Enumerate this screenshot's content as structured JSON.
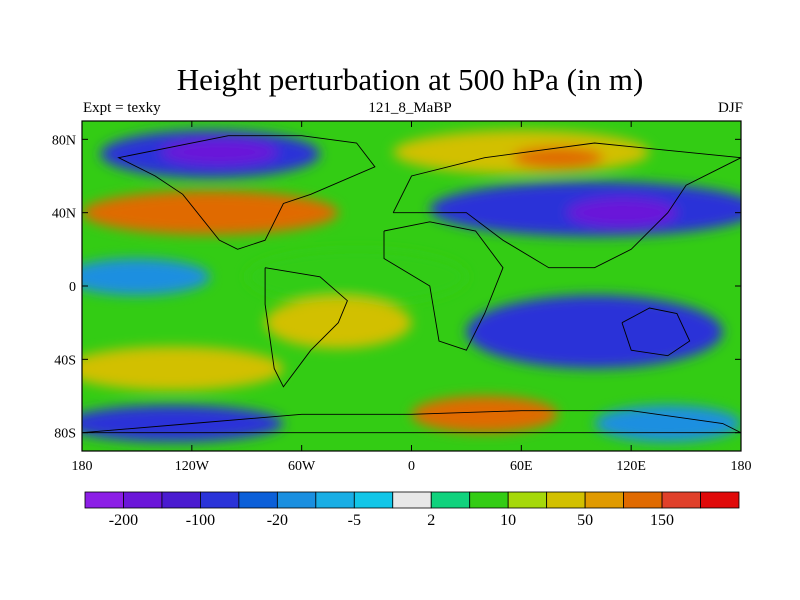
{
  "chart_data": {
    "type": "heatmap",
    "title": "Height perturbation at 500 hPa (in m)",
    "subtitle_left": "Expt = texky",
    "subtitle_center": "121_8_MaBP",
    "subtitle_right": "DJF",
    "xlabel": "",
    "ylabel": "",
    "x_range": [
      -180,
      180
    ],
    "y_range": [
      -90,
      90
    ],
    "x_ticks": [
      {
        "value": -180,
        "label": "180"
      },
      {
        "value": -120,
        "label": "120W"
      },
      {
        "value": -60,
        "label": "60W"
      },
      {
        "value": 0,
        "label": "0"
      },
      {
        "value": 60,
        "label": "60E"
      },
      {
        "value": 120,
        "label": "120E"
      },
      {
        "value": 180,
        "label": "180"
      }
    ],
    "y_ticks": [
      {
        "value": 80,
        "label": "80N"
      },
      {
        "value": 40,
        "label": "40N"
      },
      {
        "value": 0,
        "label": "0"
      },
      {
        "value": -40,
        "label": "40S"
      },
      {
        "value": -80,
        "label": "80S"
      }
    ],
    "colorbar": {
      "colors": [
        "#8c1ee6",
        "#6b16d9",
        "#4a1bd0",
        "#2a33d8",
        "#0b5fd8",
        "#1a8fe0",
        "#19aee5",
        "#12c6e8",
        "#e8e8e8",
        "#10d27d",
        "#33cc14",
        "#a5d80a",
        "#d2c000",
        "#e09a00",
        "#e06a00",
        "#e0402a",
        "#e00a0a"
      ],
      "labels": [
        {
          "boundary": 1,
          "text": "-200"
        },
        {
          "boundary": 3,
          "text": "-100"
        },
        {
          "boundary": 5,
          "text": "-20"
        },
        {
          "boundary": 7,
          "text": "-5"
        },
        {
          "boundary": 9,
          "text": "2"
        },
        {
          "boundary": 11,
          "text": "10"
        },
        {
          "boundary": 13,
          "text": "50"
        },
        {
          "boundary": 15,
          "text": "150"
        }
      ]
    },
    "fields": [
      {
        "name": "blue-high-pacific-n",
        "lon": -110,
        "lat": 72,
        "rx": 60,
        "ry": 13,
        "value": -100
      },
      {
        "name": "blue-core-pacific-n",
        "lon": -105,
        "lat": 73,
        "rx": 32,
        "ry": 7,
        "value": -200
      },
      {
        "name": "orange-pacific-40n",
        "lon": -110,
        "lat": 40,
        "rx": 70,
        "ry": 12,
        "value": 150
      },
      {
        "name": "orange-atlantic-40n",
        "lon": -100,
        "lat": 38,
        "rx": 40,
        "ry": 8,
        "value": 150
      },
      {
        "name": "blue-asia-40n",
        "lon": 100,
        "lat": 42,
        "rx": 90,
        "ry": 15,
        "value": -100
      },
      {
        "name": "purple-asia-40n",
        "lon": 115,
        "lat": 40,
        "rx": 30,
        "ry": 8,
        "value": -200
      },
      {
        "name": "yellow-europe-75n",
        "lon": 60,
        "lat": 73,
        "rx": 70,
        "ry": 12,
        "value": 50
      },
      {
        "name": "orange-siberia-75n",
        "lon": 80,
        "lat": 70,
        "rx": 25,
        "ry": 6,
        "value": 150
      },
      {
        "name": "blue-equator-pacific",
        "lon": -150,
        "lat": 5,
        "rx": 40,
        "ry": 10,
        "value": -20
      },
      {
        "name": "green-equator",
        "lon": -30,
        "lat": 5,
        "rx": 60,
        "ry": 15,
        "value": 10
      },
      {
        "name": "blue-indian-south",
        "lon": 100,
        "lat": -25,
        "rx": 70,
        "ry": 20,
        "value": -100
      },
      {
        "name": "yellow-south-pacific",
        "lon": -130,
        "lat": -45,
        "rx": 60,
        "ry": 12,
        "value": 50
      },
      {
        "name": "yellow-south-atlantic",
        "lon": -40,
        "lat": -20,
        "rx": 40,
        "ry": 14,
        "value": 50
      },
      {
        "name": "blue-southern-ocean",
        "lon": -130,
        "lat": -75,
        "rx": 60,
        "ry": 10,
        "value": -100
      },
      {
        "name": "orange-africa-south",
        "lon": 40,
        "lat": -70,
        "rx": 40,
        "ry": 10,
        "value": 150
      },
      {
        "name": "blue-antarctic-east",
        "lon": 140,
        "lat": -75,
        "rx": 40,
        "ry": 10,
        "value": -20
      }
    ],
    "coastlines": [
      {
        "name": "north-america-outline",
        "points": [
          [
            -100,
            82
          ],
          [
            -60,
            82
          ],
          [
            -30,
            78
          ],
          [
            -20,
            65
          ],
          [
            -55,
            50
          ],
          [
            -70,
            45
          ],
          [
            -80,
            25
          ],
          [
            -95,
            20
          ],
          [
            -105,
            25
          ],
          [
            -125,
            50
          ],
          [
            -140,
            60
          ],
          [
            -160,
            70
          ],
          [
            -100,
            82
          ]
        ]
      },
      {
        "name": "south-america-outline",
        "points": [
          [
            -80,
            10
          ],
          [
            -50,
            5
          ],
          [
            -35,
            -8
          ],
          [
            -40,
            -20
          ],
          [
            -55,
            -35
          ],
          [
            -70,
            -55
          ],
          [
            -75,
            -45
          ],
          [
            -80,
            -10
          ],
          [
            -80,
            10
          ]
        ]
      },
      {
        "name": "africa-outline",
        "points": [
          [
            -15,
            30
          ],
          [
            10,
            35
          ],
          [
            35,
            30
          ],
          [
            50,
            10
          ],
          [
            40,
            -15
          ],
          [
            30,
            -35
          ],
          [
            15,
            -30
          ],
          [
            10,
            0
          ],
          [
            -15,
            15
          ],
          [
            -15,
            30
          ]
        ]
      },
      {
        "name": "eurasia-outline",
        "points": [
          [
            -10,
            40
          ],
          [
            0,
            60
          ],
          [
            40,
            70
          ],
          [
            100,
            78
          ],
          [
            180,
            70
          ],
          [
            150,
            55
          ],
          [
            140,
            40
          ],
          [
            120,
            20
          ],
          [
            100,
            10
          ],
          [
            75,
            10
          ],
          [
            50,
            25
          ],
          [
            30,
            40
          ],
          [
            -10,
            40
          ]
        ]
      },
      {
        "name": "australia-outline",
        "points": [
          [
            115,
            -20
          ],
          [
            130,
            -12
          ],
          [
            145,
            -15
          ],
          [
            152,
            -30
          ],
          [
            140,
            -38
          ],
          [
            120,
            -35
          ],
          [
            115,
            -20
          ]
        ]
      },
      {
        "name": "antarctica-outline",
        "points": [
          [
            -60,
            -70
          ],
          [
            0,
            -70
          ],
          [
            60,
            -68
          ],
          [
            120,
            -68
          ],
          [
            170,
            -75
          ],
          [
            180,
            -80
          ],
          [
            -180,
            -80
          ],
          [
            -120,
            -75
          ],
          [
            -60,
            -70
          ]
        ]
      }
    ]
  }
}
